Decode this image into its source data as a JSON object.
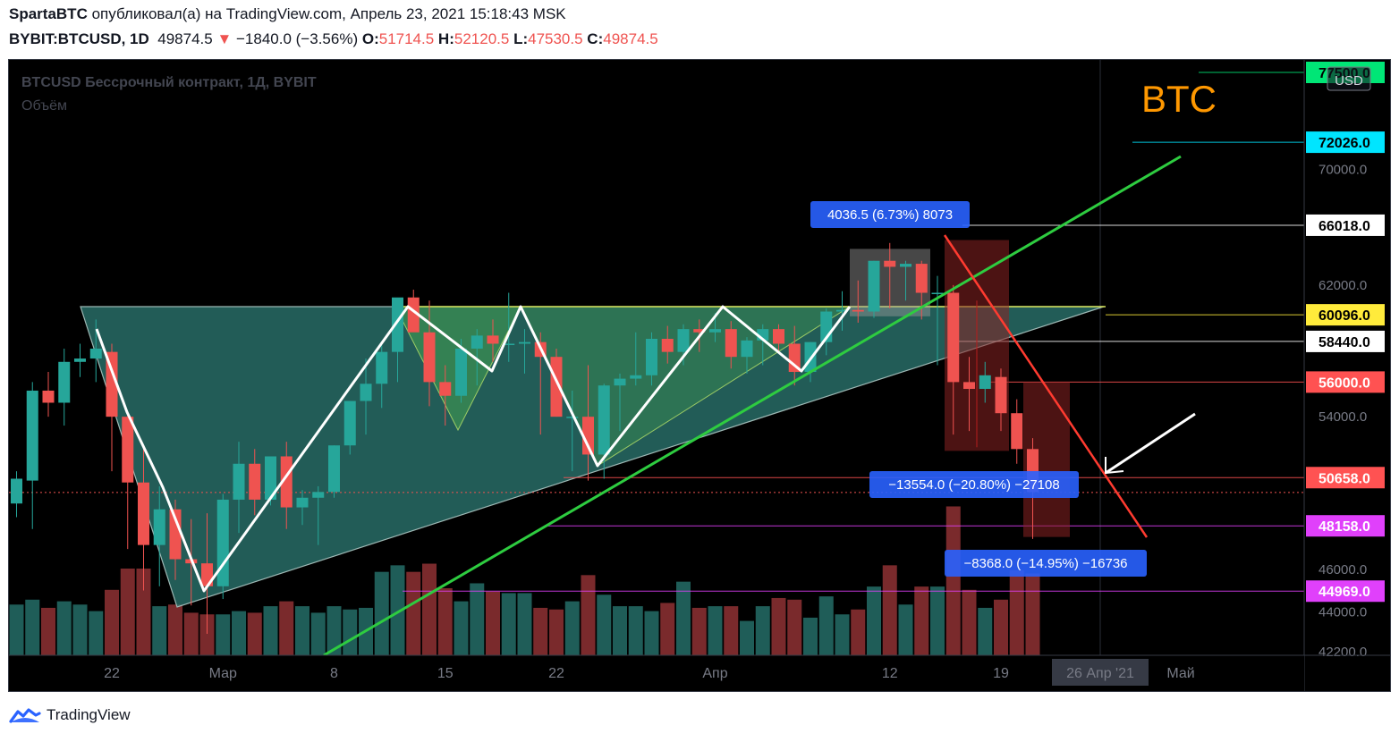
{
  "header": {
    "author": "SpartaBTC",
    "published_text": "опубликовал(а) на TradingView.com, Апрель 23, 2021 15:18:43 MSK",
    "symbol": "BYBIT:BTCUSD, 1D",
    "last": "49874.5",
    "change_arrow": "▼",
    "change": "−1840.0 (−3.56%)",
    "o_label": "O:",
    "o": "51714.5",
    "h_label": "H:",
    "h": "52120.5",
    "l_label": "L:",
    "l": "47530.5",
    "c_label": "C:",
    "c": "49874.5"
  },
  "legend": {
    "title": "BTCUSD Бессрочный контракт, 1Д, BYBIT",
    "volume": "Объём"
  },
  "annotation_text": "BTC",
  "currency_label": "USD",
  "footer": {
    "brand": "TradingView"
  },
  "colors": {
    "up": "#26a69a",
    "down": "#ef5350",
    "background": "#000000",
    "triangle_fill": "#2f7f78",
    "annotation": "#ff9800"
  },
  "chart_data": {
    "type": "candlestick",
    "symbol": "BTCUSD",
    "timeframe": "1D",
    "y_range": [
      42200,
      77500
    ],
    "y_ticks": [
      "70000.0",
      "66018.0",
      "62000.0",
      "60096.0",
      "58440.0",
      "56000.0",
      "54000.0",
      "50658.0",
      "48158.0",
      "46000.0",
      "44969.0",
      "44000.0",
      "42200.0"
    ],
    "x_labels": [
      {
        "label": "22",
        "index": 6
      },
      {
        "label": "Мар",
        "index": 13
      },
      {
        "label": "8",
        "index": 20
      },
      {
        "label": "15",
        "index": 27
      },
      {
        "label": "22",
        "index": 34
      },
      {
        "label": "Апр",
        "index": 44
      },
      {
        "label": "12",
        "index": 55
      },
      {
        "label": "19",
        "index": 62
      },
      {
        "label": "26 Апр '21",
        "index": 69
      },
      {
        "label": "Май",
        "index": 74
      }
    ],
    "price_labels": [
      {
        "value": 77500,
        "text": "77500.0",
        "bg": "#00e676",
        "fg": "#000000"
      },
      {
        "value": 72026,
        "text": "72026.0",
        "bg": "#00e5ff",
        "fg": "#000000"
      },
      {
        "value": 66018,
        "text": "66018.0",
        "bg": "#ffffff",
        "fg": "#000000"
      },
      {
        "value": 60096,
        "text": "60096.0",
        "bg": "#ffeb3b",
        "fg": "#000000"
      },
      {
        "value": 58440,
        "text": "58440.0",
        "bg": "#ffffff",
        "fg": "#000000"
      },
      {
        "value": 56000,
        "text": "56000.0",
        "bg": "#ff5252",
        "fg": "#ffffff"
      },
      {
        "value": 50658,
        "text": "50658.0",
        "bg": "#ff5252",
        "fg": "#ffffff"
      },
      {
        "value": 48158,
        "text": "48158.0",
        "bg": "#e040fb",
        "fg": "#ffffff"
      },
      {
        "value": 44969,
        "text": "44969.0",
        "bg": "#e040fb",
        "fg": "#ffffff"
      }
    ],
    "measure_labels": [
      {
        "text": "4036.5 (6.73%) 8073",
        "index": 55,
        "value": 66018
      },
      {
        "text": "−13554.0 (−20.80%) −27108",
        "index": 64,
        "value": 50400
      },
      {
        "text": "−8368.0 (−14.95%) −16736",
        "index": 66,
        "value": 46000
      }
    ],
    "candles": [
      {
        "o": 49300,
        "h": 51000,
        "l": 48600,
        "c": 50600,
        "v": 31
      },
      {
        "o": 50500,
        "h": 56000,
        "l": 48000,
        "c": 55500,
        "v": 34
      },
      {
        "o": 55500,
        "h": 56600,
        "l": 54000,
        "c": 54800,
        "v": 29
      },
      {
        "o": 54800,
        "h": 58000,
        "l": 53500,
        "c": 57200,
        "v": 33
      },
      {
        "o": 57200,
        "h": 58300,
        "l": 56300,
        "c": 57400,
        "v": 31
      },
      {
        "o": 57400,
        "h": 59800,
        "l": 56000,
        "c": 58000,
        "v": 27
      },
      {
        "o": 57800,
        "h": 58300,
        "l": 51000,
        "c": 54000,
        "v": 40
      },
      {
        "o": 54000,
        "h": 54300,
        "l": 47000,
        "c": 50400,
        "v": 53
      },
      {
        "o": 50400,
        "h": 52300,
        "l": 45000,
        "c": 47200,
        "v": 53
      },
      {
        "o": 47200,
        "h": 50200,
        "l": 45200,
        "c": 49000,
        "v": 30
      },
      {
        "o": 49000,
        "h": 49500,
        "l": 45500,
        "c": 46500,
        "v": 31
      },
      {
        "o": 46500,
        "h": 48500,
        "l": 44300,
        "c": 46300,
        "v": 26
      },
      {
        "o": 46300,
        "h": 48800,
        "l": 43000,
        "c": 45200,
        "v": 25
      },
      {
        "o": 45200,
        "h": 49800,
        "l": 44600,
        "c": 49500,
        "v": 25
      },
      {
        "o": 49500,
        "h": 52600,
        "l": 47800,
        "c": 51400,
        "v": 27
      },
      {
        "o": 51400,
        "h": 52200,
        "l": 48700,
        "c": 49500,
        "v": 26
      },
      {
        "o": 49500,
        "h": 51800,
        "l": 49200,
        "c": 51800,
        "v": 30
      },
      {
        "o": 51800,
        "h": 52600,
        "l": 48000,
        "c": 49100,
        "v": 33
      },
      {
        "o": 49100,
        "h": 50000,
        "l": 48200,
        "c": 49600,
        "v": 30
      },
      {
        "o": 49600,
        "h": 50200,
        "l": 47200,
        "c": 49900,
        "v": 26
      },
      {
        "o": 49900,
        "h": 52400,
        "l": 49600,
        "c": 52400,
        "v": 30
      },
      {
        "o": 52400,
        "h": 54900,
        "l": 51900,
        "c": 54900,
        "v": 28
      },
      {
        "o": 54900,
        "h": 57400,
        "l": 53000,
        "c": 55900,
        "v": 29
      },
      {
        "o": 55900,
        "h": 58200,
        "l": 54500,
        "c": 57800,
        "v": 51
      },
      {
        "o": 57800,
        "h": 61000,
        "l": 56000,
        "c": 61200,
        "v": 55
      },
      {
        "o": 61200,
        "h": 61700,
        "l": 59200,
        "c": 59000,
        "v": 51
      },
      {
        "o": 59000,
        "h": 61000,
        "l": 54600,
        "c": 56000,
        "v": 56
      },
      {
        "o": 56000,
        "h": 57000,
        "l": 53500,
        "c": 55200,
        "v": 41
      },
      {
        "o": 55200,
        "h": 58600,
        "l": 54800,
        "c": 58000,
        "v": 33
      },
      {
        "o": 58000,
        "h": 59200,
        "l": 55800,
        "c": 58800,
        "v": 44
      },
      {
        "o": 58800,
        "h": 59800,
        "l": 57200,
        "c": 58300,
        "v": 39
      },
      {
        "o": 58300,
        "h": 61500,
        "l": 57200,
        "c": 58300,
        "v": 38
      },
      {
        "o": 58300,
        "h": 59200,
        "l": 56500,
        "c": 58400,
        "v": 38
      },
      {
        "o": 58400,
        "h": 59000,
        "l": 53000,
        "c": 57500,
        "v": 29
      },
      {
        "o": 57500,
        "h": 58000,
        "l": 54000,
        "c": 54000,
        "v": 28
      },
      {
        "o": 54000,
        "h": 55500,
        "l": 51000,
        "c": 54000,
        "v": 33
      },
      {
        "o": 54000,
        "h": 57000,
        "l": 50500,
        "c": 51900,
        "v": 49
      },
      {
        "o": 51900,
        "h": 55900,
        "l": 50600,
        "c": 55800,
        "v": 37
      },
      {
        "o": 55800,
        "h": 56500,
        "l": 53200,
        "c": 56200,
        "v": 30
      },
      {
        "o": 56200,
        "h": 59000,
        "l": 55800,
        "c": 56400,
        "v": 30
      },
      {
        "o": 56400,
        "h": 59000,
        "l": 55800,
        "c": 58600,
        "v": 27
      },
      {
        "o": 58600,
        "h": 59400,
        "l": 57100,
        "c": 57800,
        "v": 32
      },
      {
        "o": 57800,
        "h": 59500,
        "l": 57000,
        "c": 59200,
        "v": 45
      },
      {
        "o": 59200,
        "h": 59800,
        "l": 57800,
        "c": 59000,
        "v": 29
      },
      {
        "o": 59000,
        "h": 60200,
        "l": 58400,
        "c": 59200,
        "v": 30
      },
      {
        "o": 59200,
        "h": 59700,
        "l": 56800,
        "c": 57500,
        "v": 30
      },
      {
        "o": 57500,
        "h": 58700,
        "l": 56500,
        "c": 58500,
        "v": 21
      },
      {
        "o": 58500,
        "h": 59500,
        "l": 57000,
        "c": 59200,
        "v": 30
      },
      {
        "o": 59200,
        "h": 59500,
        "l": 57800,
        "c": 58300,
        "v": 35
      },
      {
        "o": 58300,
        "h": 59400,
        "l": 55800,
        "c": 56600,
        "v": 34
      },
      {
        "o": 56600,
        "h": 58400,
        "l": 56000,
        "c": 58400,
        "v": 23
      },
      {
        "o": 58400,
        "h": 60500,
        "l": 57600,
        "c": 60300,
        "v": 36
      },
      {
        "o": 60300,
        "h": 61600,
        "l": 59100,
        "c": 60400,
        "v": 25
      },
      {
        "o": 60400,
        "h": 62300,
        "l": 59600,
        "c": 60300,
        "v": 28
      },
      {
        "o": 60300,
        "h": 63600,
        "l": 59900,
        "c": 63600,
        "v": 42
      },
      {
        "o": 63600,
        "h": 64800,
        "l": 60500,
        "c": 63200,
        "v": 55
      },
      {
        "o": 63200,
        "h": 63600,
        "l": 61000,
        "c": 63400,
        "v": 31
      },
      {
        "o": 63400,
        "h": 63600,
        "l": 59800,
        "c": 61500,
        "v": 42
      },
      {
        "o": 61500,
        "h": 62600,
        "l": 57000,
        "c": 61500,
        "v": 42
      },
      {
        "o": 61500,
        "h": 62000,
        "l": 53000,
        "c": 56000,
        "v": 91
      },
      {
        "o": 56000,
        "h": 57500,
        "l": 53200,
        "c": 55600,
        "v": 40
      },
      {
        "o": 55600,
        "h": 57200,
        "l": 54800,
        "c": 56400,
        "v": 29
      },
      {
        "o": 56300,
        "h": 56800,
        "l": 53200,
        "c": 54200,
        "v": 34
      },
      {
        "o": 54200,
        "h": 55000,
        "l": 51400,
        "c": 52200,
        "v": 52
      },
      {
        "o": 52200,
        "h": 52800,
        "l": 47500,
        "c": 49900,
        "v": 50
      }
    ]
  }
}
